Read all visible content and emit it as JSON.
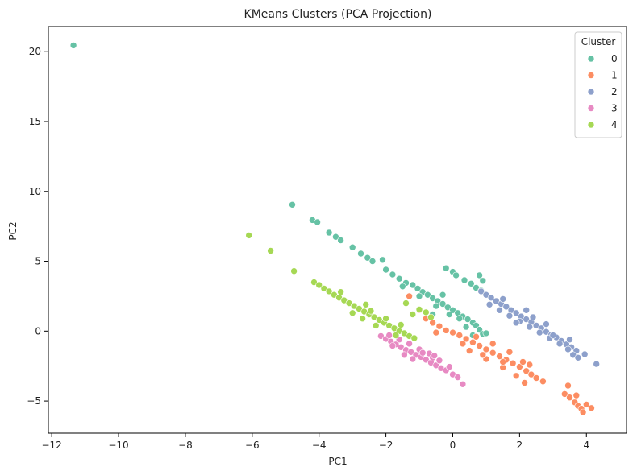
{
  "chart_data": {
    "type": "scatter",
    "title": "KMeans Clusters (PCA Projection)",
    "xlabel": "PC1",
    "ylabel": "PC2",
    "xlim": [
      -12.1,
      5.2
    ],
    "ylim": [
      -7.3,
      21.8
    ],
    "xticks": [
      -12,
      -10,
      -8,
      -6,
      -4,
      -2,
      0,
      2,
      4
    ],
    "yticks": [
      -5,
      0,
      5,
      10,
      15,
      20
    ],
    "grid": false,
    "legend": {
      "title": "Cluster",
      "placement": "top-right"
    },
    "series": [
      {
        "name": "0",
        "color": "#66c2a5",
        "points": [
          [
            -11.35,
            20.45
          ],
          [
            -4.8,
            9.05
          ],
          [
            -4.2,
            7.95
          ],
          [
            -4.05,
            7.8
          ],
          [
            -3.7,
            7.05
          ],
          [
            -3.5,
            6.75
          ],
          [
            -3.35,
            6.5
          ],
          [
            -3.0,
            6.0
          ],
          [
            -2.75,
            5.55
          ],
          [
            -2.55,
            5.25
          ],
          [
            -2.4,
            5.0
          ],
          [
            -2.1,
            5.1
          ],
          [
            -2.0,
            4.4
          ],
          [
            -1.8,
            4.05
          ],
          [
            -1.6,
            3.75
          ],
          [
            -1.4,
            3.45
          ],
          [
            -1.2,
            3.3
          ],
          [
            -1.05,
            3.05
          ],
          [
            -0.9,
            2.8
          ],
          [
            -0.75,
            2.6
          ],
          [
            -0.6,
            2.35
          ],
          [
            -0.45,
            2.15
          ],
          [
            -0.3,
            1.95
          ],
          [
            -0.15,
            1.7
          ],
          [
            0.0,
            1.5
          ],
          [
            0.15,
            1.3
          ],
          [
            0.3,
            1.05
          ],
          [
            0.45,
            0.85
          ],
          [
            0.6,
            0.6
          ],
          [
            0.7,
            0.4
          ],
          [
            0.8,
            0.1
          ],
          [
            0.9,
            -0.2
          ],
          [
            1.0,
            -0.15
          ],
          [
            0.6,
            -0.3
          ],
          [
            0.4,
            0.3
          ],
          [
            0.2,
            0.9
          ],
          [
            -0.1,
            1.2
          ],
          [
            -0.5,
            1.8
          ],
          [
            -1.0,
            2.5
          ],
          [
            -1.5,
            3.2
          ],
          [
            -0.2,
            4.5
          ],
          [
            0.0,
            4.25
          ],
          [
            0.1,
            4.0
          ],
          [
            0.35,
            3.65
          ],
          [
            0.55,
            3.4
          ],
          [
            0.7,
            3.1
          ],
          [
            0.85,
            2.9
          ],
          [
            0.8,
            4.0
          ],
          [
            0.9,
            3.6
          ],
          [
            -0.3,
            2.6
          ],
          [
            -0.6,
            1.2
          ]
        ]
      },
      {
        "name": "1",
        "color": "#fc8d62",
        "points": [
          [
            -1.3,
            2.5
          ],
          [
            -1.0,
            1.5
          ],
          [
            -0.8,
            0.9
          ],
          [
            -0.6,
            0.6
          ],
          [
            -0.4,
            0.35
          ],
          [
            -0.2,
            0.05
          ],
          [
            0.0,
            -0.1
          ],
          [
            0.2,
            -0.3
          ],
          [
            0.4,
            -0.55
          ],
          [
            0.6,
            -0.8
          ],
          [
            0.8,
            -1.05
          ],
          [
            1.0,
            -1.3
          ],
          [
            1.2,
            -1.55
          ],
          [
            1.4,
            -1.8
          ],
          [
            1.6,
            -2.05
          ],
          [
            1.8,
            -2.3
          ],
          [
            2.0,
            -2.55
          ],
          [
            2.2,
            -2.85
          ],
          [
            2.35,
            -3.1
          ],
          [
            2.5,
            -3.35
          ],
          [
            2.7,
            -3.6
          ],
          [
            2.15,
            -3.7
          ],
          [
            1.9,
            -3.2
          ],
          [
            1.5,
            -2.6
          ],
          [
            1.0,
            -2.0
          ],
          [
            0.5,
            -1.4
          ],
          [
            0.7,
            -0.4
          ],
          [
            1.2,
            -0.9
          ],
          [
            1.7,
            -1.5
          ],
          [
            2.1,
            -2.2
          ],
          [
            3.45,
            -3.9
          ],
          [
            3.35,
            -4.5
          ],
          [
            3.5,
            -4.75
          ],
          [
            3.65,
            -5.1
          ],
          [
            3.7,
            -4.6
          ],
          [
            3.75,
            -5.35
          ],
          [
            3.85,
            -5.55
          ],
          [
            3.9,
            -5.8
          ],
          [
            4.0,
            -5.25
          ],
          [
            4.15,
            -5.5
          ],
          [
            0.3,
            -0.9
          ],
          [
            -0.5,
            -0.1
          ],
          [
            0.9,
            -1.7
          ],
          [
            1.5,
            -2.2
          ],
          [
            2.3,
            -2.4
          ]
        ]
      },
      {
        "name": "2",
        "color": "#8da0cb",
        "points": [
          [
            0.85,
            2.85
          ],
          [
            1.0,
            2.6
          ],
          [
            1.15,
            2.4
          ],
          [
            1.3,
            2.15
          ],
          [
            1.45,
            1.95
          ],
          [
            1.6,
            1.75
          ],
          [
            1.75,
            1.5
          ],
          [
            1.9,
            1.3
          ],
          [
            2.05,
            1.05
          ],
          [
            2.2,
            0.85
          ],
          [
            2.35,
            0.65
          ],
          [
            2.5,
            0.4
          ],
          [
            2.65,
            0.2
          ],
          [
            2.8,
            -0.05
          ],
          [
            2.95,
            -0.25
          ],
          [
            3.1,
            -0.45
          ],
          [
            3.25,
            -0.7
          ],
          [
            3.4,
            -0.95
          ],
          [
            3.55,
            -1.15
          ],
          [
            3.7,
            -1.4
          ],
          [
            3.45,
            -1.3
          ],
          [
            3.2,
            -0.9
          ],
          [
            2.9,
            -0.5
          ],
          [
            2.6,
            -0.1
          ],
          [
            2.3,
            0.3
          ],
          [
            2.0,
            0.7
          ],
          [
            1.7,
            1.1
          ],
          [
            1.4,
            1.5
          ],
          [
            1.1,
            1.9
          ],
          [
            1.9,
            0.6
          ],
          [
            2.4,
            1.0
          ],
          [
            2.8,
            0.5
          ],
          [
            3.5,
            -0.6
          ],
          [
            3.6,
            -1.7
          ],
          [
            3.75,
            -1.9
          ],
          [
            3.95,
            -1.65
          ],
          [
            4.3,
            -2.35
          ],
          [
            3.0,
            -0.3
          ],
          [
            1.5,
            2.3
          ],
          [
            2.2,
            1.5
          ]
        ]
      },
      {
        "name": "3",
        "color": "#e78ac3",
        "points": [
          [
            -2.15,
            -0.35
          ],
          [
            -2.0,
            -0.55
          ],
          [
            -1.85,
            -0.75
          ],
          [
            -1.7,
            -0.95
          ],
          [
            -1.55,
            -1.15
          ],
          [
            -1.4,
            -1.35
          ],
          [
            -1.25,
            -1.5
          ],
          [
            -1.1,
            -1.7
          ],
          [
            -0.95,
            -1.85
          ],
          [
            -0.8,
            -2.05
          ],
          [
            -0.65,
            -2.25
          ],
          [
            -0.5,
            -2.45
          ],
          [
            -0.35,
            -2.65
          ],
          [
            -0.2,
            -2.8
          ],
          [
            -1.9,
            -0.3
          ],
          [
            -1.6,
            -0.6
          ],
          [
            -1.3,
            -0.9
          ],
          [
            -1.0,
            -1.3
          ],
          [
            -0.7,
            -1.6
          ],
          [
            -0.6,
            -1.9
          ],
          [
            -0.4,
            -2.1
          ],
          [
            -1.45,
            -1.7
          ],
          [
            -1.2,
            -2.0
          ],
          [
            -0.9,
            -1.55
          ],
          [
            -0.1,
            -2.55
          ],
          [
            0.0,
            -3.1
          ],
          [
            0.15,
            -3.3
          ],
          [
            0.3,
            -3.8
          ],
          [
            -0.55,
            -1.75
          ],
          [
            -1.8,
            -1.05
          ]
        ]
      },
      {
        "name": "4",
        "color": "#a6d854",
        "points": [
          [
            -6.1,
            6.85
          ],
          [
            -5.45,
            5.75
          ],
          [
            -4.75,
            4.3
          ],
          [
            -4.15,
            3.5
          ],
          [
            -4.0,
            3.3
          ],
          [
            -3.85,
            3.05
          ],
          [
            -3.7,
            2.85
          ],
          [
            -3.55,
            2.6
          ],
          [
            -3.4,
            2.4
          ],
          [
            -3.25,
            2.2
          ],
          [
            -3.1,
            2.0
          ],
          [
            -2.95,
            1.8
          ],
          [
            -2.8,
            1.6
          ],
          [
            -2.65,
            1.4
          ],
          [
            -2.5,
            1.2
          ],
          [
            -2.35,
            1.0
          ],
          [
            -2.2,
            0.8
          ],
          [
            -2.05,
            0.6
          ],
          [
            -1.9,
            0.4
          ],
          [
            -1.75,
            0.2
          ],
          [
            -1.6,
            0.0
          ],
          [
            -1.45,
            -0.15
          ],
          [
            -1.3,
            -0.35
          ],
          [
            -1.15,
            -0.5
          ],
          [
            -3.35,
            2.8
          ],
          [
            -2.6,
            1.9
          ],
          [
            -2.3,
            0.4
          ],
          [
            -2.7,
            0.9
          ],
          [
            -3.0,
            1.3
          ],
          [
            -2.0,
            0.9
          ],
          [
            -1.7,
            -0.3
          ],
          [
            -2.45,
            1.45
          ],
          [
            -1.4,
            2.0
          ],
          [
            -1.0,
            1.55
          ],
          [
            -0.8,
            1.35
          ],
          [
            -1.2,
            1.2
          ],
          [
            -0.65,
            1.0
          ],
          [
            -1.55,
            0.45
          ]
        ]
      }
    ]
  }
}
